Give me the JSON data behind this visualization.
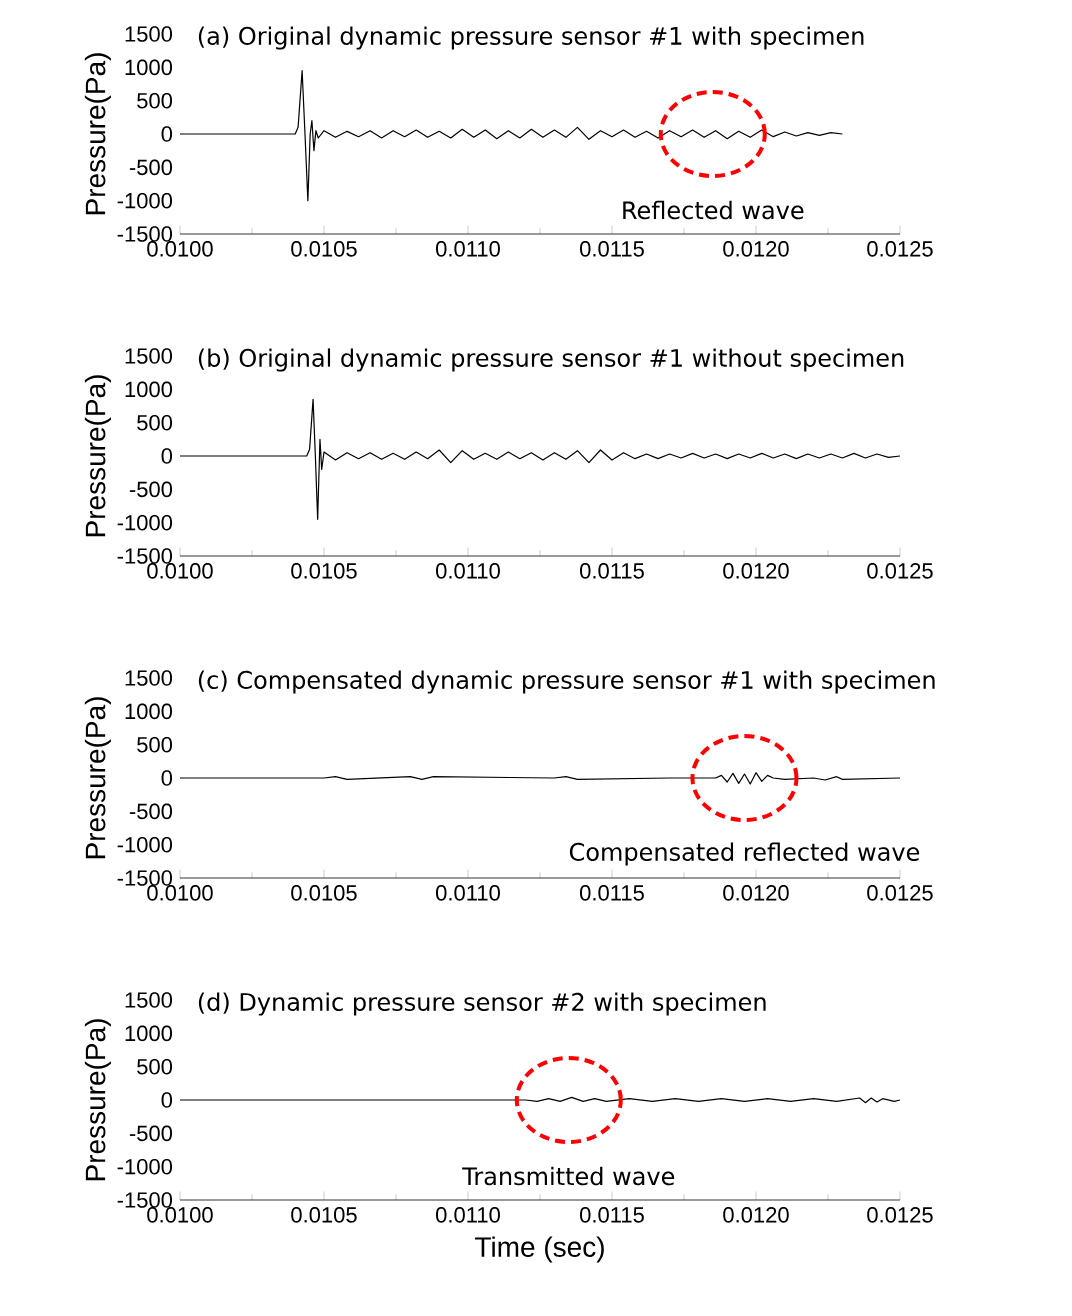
{
  "chart_data": [
    {
      "type": "line",
      "title": "(a) Original dynamic pressure sensor #1 with specimen",
      "ylabel": "Pressure(Pa)",
      "xlim": [
        0.01,
        0.0125
      ],
      "ylim": [
        -1500,
        1500
      ],
      "xticks": [
        {
          "value": 0.01,
          "label": "0.0100"
        },
        {
          "value": 0.0105,
          "label": "0.0105"
        },
        {
          "value": 0.011,
          "label": "0.0110"
        },
        {
          "value": 0.0115,
          "label": "0.0115"
        },
        {
          "value": 0.012,
          "label": "0.0120"
        },
        {
          "value": 0.0125,
          "label": "0.0125"
        }
      ],
      "yticks": [
        -1500,
        -1000,
        -500,
        0,
        500,
        1000,
        1500
      ],
      "color": "#000000",
      "x": [
        0.01,
        0.0104,
        0.01041,
        0.010424,
        0.010434,
        0.010444,
        0.010452,
        0.010458,
        0.010465,
        0.010472,
        0.01048,
        0.0105,
        0.01054,
        0.01058,
        0.01062,
        0.01066,
        0.0107,
        0.01074,
        0.01078,
        0.01082,
        0.01086,
        0.0109,
        0.01094,
        0.01098,
        0.01102,
        0.01106,
        0.0111,
        0.01114,
        0.01118,
        0.01122,
        0.01126,
        0.0113,
        0.01134,
        0.01138,
        0.01142,
        0.01146,
        0.0115,
        0.01154,
        0.01158,
        0.01162,
        0.01166,
        0.0117,
        0.01174,
        0.01178,
        0.01182,
        0.01186,
        0.0119,
        0.01194,
        0.01198,
        0.01202,
        0.01206,
        0.0121,
        0.01214,
        0.01218,
        0.01222,
        0.01226,
        0.0123
      ],
      "values": [
        0,
        0,
        100,
        950,
        0,
        -1000,
        0,
        200,
        -250,
        50,
        -60,
        50,
        -50,
        40,
        -40,
        50,
        -60,
        50,
        -40,
        60,
        -50,
        40,
        -60,
        70,
        -50,
        60,
        -70,
        50,
        -60,
        70,
        -50,
        60,
        -50,
        100,
        -80,
        50,
        -40,
        60,
        -50,
        40,
        -60,
        50,
        -40,
        60,
        -50,
        50,
        -70,
        40,
        -50,
        60,
        -40,
        30,
        -30,
        20,
        -20,
        20,
        0
      ],
      "annotations": [
        {
          "text": "Reflected wave",
          "x": 0.01185,
          "y": 0
        }
      ]
    },
    {
      "type": "line",
      "title": "(b) Original dynamic pressure sensor #1 without specimen",
      "ylabel": "Pressure(Pa)",
      "xlim": [
        0.01,
        0.0125
      ],
      "ylim": [
        -1500,
        1500
      ],
      "xticks": [
        {
          "value": 0.01,
          "label": "0.0100"
        },
        {
          "value": 0.0105,
          "label": "0.0105"
        },
        {
          "value": 0.011,
          "label": "0.0110"
        },
        {
          "value": 0.0115,
          "label": "0.0115"
        },
        {
          "value": 0.012,
          "label": "0.0120"
        },
        {
          "value": 0.0125,
          "label": "0.0125"
        }
      ],
      "yticks": [
        -1500,
        -1000,
        -500,
        0,
        500,
        1000,
        1500
      ],
      "color": "#000000",
      "x": [
        0.01,
        0.01044,
        0.01045,
        0.010462,
        0.01047,
        0.010478,
        0.010486,
        0.010492,
        0.0105,
        0.01054,
        0.01058,
        0.01062,
        0.01066,
        0.0107,
        0.01074,
        0.01078,
        0.01082,
        0.01086,
        0.0109,
        0.01094,
        0.01098,
        0.01102,
        0.01106,
        0.0111,
        0.01114,
        0.01118,
        0.01122,
        0.01126,
        0.0113,
        0.01134,
        0.01138,
        0.01142,
        0.01146,
        0.0115,
        0.01154,
        0.01158,
        0.01162,
        0.01166,
        0.0117,
        0.01174,
        0.01178,
        0.01182,
        0.01186,
        0.0119,
        0.01194,
        0.01198,
        0.01202,
        0.01206,
        0.0121,
        0.01214,
        0.01218,
        0.01222,
        0.01226,
        0.0123,
        0.01234,
        0.01238,
        0.01242,
        0.01246,
        0.0125
      ],
      "values": [
        0,
        0,
        100,
        850,
        0,
        -950,
        250,
        -200,
        60,
        -60,
        50,
        -40,
        50,
        -50,
        40,
        -50,
        60,
        -40,
        90,
        -100,
        80,
        -50,
        40,
        -50,
        60,
        -40,
        50,
        -60,
        50,
        -50,
        80,
        -100,
        90,
        -60,
        50,
        -40,
        30,
        -40,
        30,
        -30,
        40,
        -30,
        30,
        -40,
        30,
        -30,
        40,
        -30,
        30,
        -40,
        30,
        -30,
        30,
        -30,
        40,
        -30,
        30,
        -20,
        0
      ]
    },
    {
      "type": "line",
      "title": "(c) Compensated dynamic pressure sensor #1 with specimen",
      "ylabel": "Pressure(Pa)",
      "xlim": [
        0.01,
        0.0125
      ],
      "ylim": [
        -1500,
        1500
      ],
      "xticks": [
        {
          "value": 0.01,
          "label": "0.0100"
        },
        {
          "value": 0.0105,
          "label": "0.0105"
        },
        {
          "value": 0.011,
          "label": "0.0110"
        },
        {
          "value": 0.0115,
          "label": "0.0115"
        },
        {
          "value": 0.012,
          "label": "0.0120"
        },
        {
          "value": 0.0125,
          "label": "0.0125"
        }
      ],
      "yticks": [
        -1500,
        -1000,
        -500,
        0,
        500,
        1000,
        1500
      ],
      "color": "#000000",
      "x": [
        0.01,
        0.0105,
        0.01054,
        0.01058,
        0.0108,
        0.01084,
        0.01088,
        0.0113,
        0.01134,
        0.01138,
        0.0117,
        0.01186,
        0.01188,
        0.0119,
        0.01192,
        0.01194,
        0.01196,
        0.01198,
        0.012,
        0.01202,
        0.01204,
        0.01206,
        0.0121,
        0.0122,
        0.01224,
        0.01228,
        0.0123,
        0.0125
      ],
      "values": [
        0,
        0,
        20,
        -20,
        20,
        -20,
        20,
        0,
        20,
        -20,
        0,
        0,
        40,
        -60,
        70,
        -80,
        60,
        -90,
        80,
        -50,
        40,
        0,
        -20,
        0,
        -30,
        20,
        -20,
        0
      ],
      "annotations": [
        {
          "text": "Compensated reflected wave",
          "x": 0.01196,
          "y": 0
        }
      ]
    },
    {
      "type": "line",
      "title": "(d) Dynamic pressure sensor #2 with specimen",
      "xlabel": "Time (sec)",
      "ylabel": "Pressure(Pa)",
      "xlim": [
        0.01,
        0.0125
      ],
      "ylim": [
        -1500,
        1500
      ],
      "xticks": [
        {
          "value": 0.01,
          "label": "0.0100"
        },
        {
          "value": 0.0105,
          "label": "0.0105"
        },
        {
          "value": 0.011,
          "label": "0.0110"
        },
        {
          "value": 0.0115,
          "label": "0.0115"
        },
        {
          "value": 0.012,
          "label": "0.0120"
        },
        {
          "value": 0.0125,
          "label": "0.0125"
        }
      ],
      "yticks": [
        -1500,
        -1000,
        -500,
        0,
        500,
        1000,
        1500
      ],
      "color": "#000000",
      "x": [
        0.01,
        0.0112,
        0.01124,
        0.01128,
        0.01132,
        0.01136,
        0.0114,
        0.01144,
        0.01148,
        0.01156,
        0.01164,
        0.01172,
        0.0118,
        0.01188,
        0.01196,
        0.01204,
        0.01212,
        0.0122,
        0.01228,
        0.01236,
        0.01238,
        0.0124,
        0.01242,
        0.01244,
        0.01248,
        0.0125
      ],
      "values": [
        0,
        0,
        -20,
        20,
        -20,
        40,
        -20,
        20,
        -20,
        20,
        -20,
        20,
        -20,
        20,
        -20,
        20,
        -20,
        20,
        -20,
        30,
        -40,
        30,
        -30,
        20,
        -20,
        0
      ],
      "annotations": [
        {
          "text": "Transmitted wave",
          "x": 0.01135,
          "y": 0
        }
      ]
    }
  ]
}
